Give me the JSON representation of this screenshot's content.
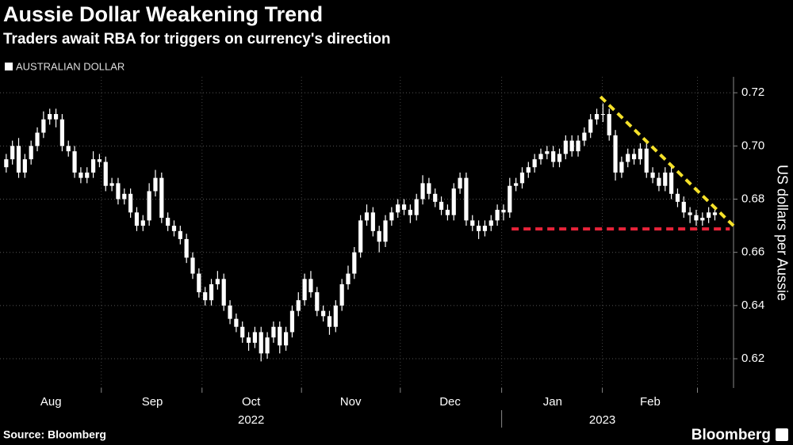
{
  "chart_data": {
    "type": "candlestick",
    "title": "Aussie Dollar Weakening Trend",
    "subtitle": "Traders await RBA for triggers on currency's direction",
    "y_label": "US dollars per Aussie",
    "source": "Source: Bloomberg",
    "brand": "Bloomberg",
    "series": [
      {
        "name": "AUSTRALIAN DOLLAR",
        "color": "#ffffff",
        "x": [
          0,
          1,
          2,
          3,
          4,
          5,
          6,
          7,
          8,
          9,
          10,
          11,
          12,
          13,
          14,
          15,
          16,
          17,
          18,
          19,
          20,
          21,
          22,
          23,
          24,
          25,
          26,
          27,
          28,
          29,
          30,
          31,
          32,
          33,
          34,
          35,
          36,
          37,
          38,
          39,
          40,
          41,
          42,
          43,
          44,
          45,
          46,
          47,
          48,
          49,
          50,
          51,
          52,
          53,
          54,
          55,
          56,
          57,
          58,
          59,
          60,
          61,
          62,
          63,
          64,
          65,
          66,
          67,
          68,
          69,
          70,
          71,
          72,
          73,
          74,
          75,
          76,
          77,
          78,
          79,
          80,
          81,
          82,
          83,
          84,
          85,
          86,
          87,
          88,
          89,
          90,
          91,
          92,
          93,
          94,
          95,
          96,
          97,
          98,
          99,
          100,
          101,
          102,
          103,
          104,
          105,
          106,
          107,
          108,
          109,
          110,
          111,
          112,
          113,
          114
        ],
        "open": [
          0.692,
          0.695,
          0.7,
          0.69,
          0.695,
          0.7,
          0.705,
          0.71,
          0.712,
          0.71,
          0.7,
          0.698,
          0.69,
          0.688,
          0.69,
          0.695,
          0.694,
          0.685,
          0.686,
          0.68,
          0.682,
          0.675,
          0.67,
          0.672,
          0.683,
          0.688,
          0.673,
          0.67,
          0.668,
          0.665,
          0.658,
          0.652,
          0.645,
          0.642,
          0.648,
          0.65,
          0.64,
          0.635,
          0.632,
          0.628,
          0.626,
          0.63,
          0.622,
          0.628,
          0.632,
          0.625,
          0.63,
          0.638,
          0.642,
          0.65,
          0.645,
          0.638,
          0.636,
          0.632,
          0.64,
          0.648,
          0.652,
          0.66,
          0.672,
          0.675,
          0.668,
          0.664,
          0.672,
          0.675,
          0.678,
          0.676,
          0.674,
          0.68,
          0.686,
          0.682,
          0.679,
          0.676,
          0.674,
          0.684,
          0.688,
          0.672,
          0.67,
          0.668,
          0.67,
          0.672,
          0.676,
          0.675,
          0.685,
          0.686,
          0.69,
          0.692,
          0.695,
          0.697,
          0.698,
          0.694,
          0.697,
          0.702,
          0.698,
          0.702,
          0.705,
          0.71,
          0.712,
          0.712,
          0.704,
          0.69,
          0.694,
          0.697,
          0.695,
          0.699,
          0.69,
          0.688,
          0.685,
          0.69,
          0.682,
          0.679,
          0.675,
          0.674,
          0.672,
          0.673,
          0.675
        ],
        "high": [
          0.697,
          0.702,
          0.703,
          0.697,
          0.702,
          0.707,
          0.713,
          0.714,
          0.714,
          0.712,
          0.702,
          0.7,
          0.692,
          0.692,
          0.698,
          0.697,
          0.696,
          0.688,
          0.688,
          0.684,
          0.684,
          0.677,
          0.674,
          0.686,
          0.691,
          0.69,
          0.675,
          0.672,
          0.67,
          0.667,
          0.66,
          0.654,
          0.647,
          0.65,
          0.653,
          0.652,
          0.642,
          0.637,
          0.634,
          0.63,
          0.632,
          0.632,
          0.63,
          0.634,
          0.634,
          0.632,
          0.64,
          0.645,
          0.652,
          0.653,
          0.647,
          0.64,
          0.638,
          0.642,
          0.65,
          0.655,
          0.662,
          0.674,
          0.678,
          0.677,
          0.67,
          0.674,
          0.677,
          0.68,
          0.68,
          0.678,
          0.682,
          0.689,
          0.688,
          0.684,
          0.681,
          0.678,
          0.686,
          0.69,
          0.69,
          0.674,
          0.672,
          0.672,
          0.674,
          0.678,
          0.678,
          0.688,
          0.688,
          0.692,
          0.694,
          0.697,
          0.699,
          0.7,
          0.7,
          0.699,
          0.704,
          0.704,
          0.704,
          0.707,
          0.712,
          0.714,
          0.716,
          0.714,
          0.706,
          0.696,
          0.699,
          0.699,
          0.701,
          0.701,
          0.692,
          0.69,
          0.692,
          0.692,
          0.684,
          0.681,
          0.677,
          0.676,
          0.675,
          0.677,
          0.676
        ],
        "low": [
          0.69,
          0.693,
          0.688,
          0.688,
          0.693,
          0.698,
          0.703,
          0.708,
          0.707,
          0.698,
          0.696,
          0.688,
          0.686,
          0.686,
          0.688,
          0.692,
          0.683,
          0.683,
          0.678,
          0.678,
          0.673,
          0.668,
          0.668,
          0.67,
          0.681,
          0.671,
          0.668,
          0.666,
          0.663,
          0.656,
          0.65,
          0.643,
          0.64,
          0.64,
          0.646,
          0.638,
          0.633,
          0.63,
          0.626,
          0.623,
          0.624,
          0.619,
          0.62,
          0.626,
          0.622,
          0.623,
          0.628,
          0.636,
          0.64,
          0.643,
          0.636,
          0.634,
          0.629,
          0.63,
          0.638,
          0.646,
          0.65,
          0.658,
          0.67,
          0.666,
          0.66,
          0.662,
          0.67,
          0.673,
          0.674,
          0.671,
          0.672,
          0.678,
          0.68,
          0.677,
          0.674,
          0.672,
          0.672,
          0.682,
          0.67,
          0.668,
          0.665,
          0.666,
          0.668,
          0.67,
          0.672,
          0.673,
          0.683,
          0.684,
          0.688,
          0.69,
          0.693,
          0.695,
          0.692,
          0.692,
          0.695,
          0.696,
          0.696,
          0.7,
          0.703,
          0.708,
          0.709,
          0.702,
          0.687,
          0.688,
          0.692,
          0.693,
          0.693,
          0.688,
          0.686,
          0.683,
          0.683,
          0.68,
          0.677,
          0.673,
          0.671,
          0.67,
          0.67,
          0.671,
          0.672
        ],
        "close": [
          0.695,
          0.7,
          0.69,
          0.695,
          0.7,
          0.705,
          0.71,
          0.712,
          0.71,
          0.7,
          0.698,
          0.69,
          0.688,
          0.69,
          0.695,
          0.694,
          0.685,
          0.686,
          0.68,
          0.682,
          0.675,
          0.67,
          0.672,
          0.683,
          0.688,
          0.673,
          0.67,
          0.668,
          0.665,
          0.658,
          0.652,
          0.645,
          0.642,
          0.648,
          0.65,
          0.64,
          0.635,
          0.632,
          0.628,
          0.626,
          0.63,
          0.622,
          0.628,
          0.632,
          0.625,
          0.63,
          0.638,
          0.642,
          0.65,
          0.645,
          0.638,
          0.636,
          0.632,
          0.64,
          0.648,
          0.652,
          0.66,
          0.672,
          0.675,
          0.668,
          0.664,
          0.672,
          0.675,
          0.678,
          0.676,
          0.674,
          0.68,
          0.686,
          0.682,
          0.679,
          0.676,
          0.674,
          0.684,
          0.688,
          0.672,
          0.67,
          0.668,
          0.67,
          0.672,
          0.676,
          0.675,
          0.685,
          0.686,
          0.69,
          0.692,
          0.695,
          0.697,
          0.698,
          0.694,
          0.697,
          0.702,
          0.698,
          0.702,
          0.705,
          0.71,
          0.712,
          0.712,
          0.704,
          0.69,
          0.694,
          0.697,
          0.695,
          0.699,
          0.69,
          0.688,
          0.685,
          0.69,
          0.682,
          0.679,
          0.675,
          0.674,
          0.672,
          0.673,
          0.675,
          0.674
        ]
      }
    ],
    "annotations": [
      {
        "color": "#f5e12a",
        "x": [
          95.6,
          117
        ],
        "y": [
          0.7185,
          0.67
        ]
      },
      {
        "color": "#e8233a",
        "x": [
          81.3,
          116.4
        ],
        "y": [
          0.6688,
          0.6688
        ]
      }
    ],
    "xlim": [
      -1,
      117
    ],
    "ylim": [
      0.609,
      0.726
    ],
    "yticks": [
      0.62,
      0.64,
      0.66,
      0.68,
      {
        "value": 0.7,
        "label": "0.70"
      },
      0.72
    ],
    "xticks": [
      {
        "value": 7.2,
        "label": "Aug"
      },
      {
        "value": 23.5,
        "label": "Sep"
      },
      {
        "value": 39.4,
        "label": "Oct"
      },
      {
        "value": 55.4,
        "label": "Nov"
      },
      {
        "value": 71.4,
        "label": "Dec"
      },
      {
        "value": 87.9,
        "label": "Jan"
      },
      {
        "value": 103.6,
        "label": "Feb"
      }
    ],
    "xgrid": [
      15.3,
      31.5,
      47.5,
      63.4,
      79.7,
      95.9,
      111.2
    ],
    "year_labels": [
      {
        "value": 39.4,
        "label": "2022"
      },
      {
        "value": 95.9,
        "label": "2023"
      }
    ],
    "year_divider": 79.7,
    "grid": true
  }
}
